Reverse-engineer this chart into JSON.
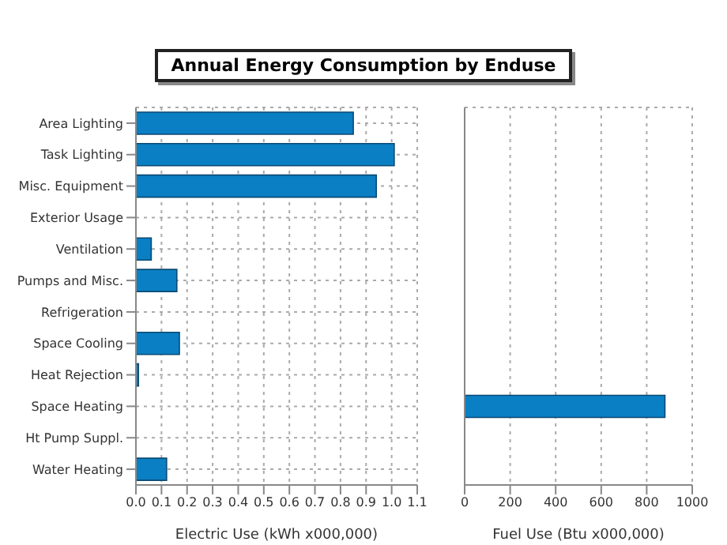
{
  "chart_data": [
    {
      "type": "bar",
      "orientation": "horizontal",
      "title": "Annual Energy Consumption by Enduse",
      "xlabel": "Electric Use (kWh x000,000)",
      "categories": [
        "Area Lighting",
        "Task Lighting",
        "Misc. Equipment",
        "Exterior Usage",
        "Ventilation",
        "Pumps and Misc.",
        "Refrigeration",
        "Space Cooling",
        "Heat Rejection",
        "Space Heating",
        "Ht Pump Suppl.",
        "Water Heating"
      ],
      "values": [
        0.85,
        1.01,
        0.94,
        0,
        0.06,
        0.16,
        0,
        0.17,
        0.01,
        0,
        0,
        0.12
      ],
      "color": "#0a7fc4",
      "xlim": [
        0,
        1.1
      ],
      "xticks": [
        {
          "value": 0,
          "label": "0.0"
        },
        0.1,
        0.2,
        0.3,
        0.4,
        0.5,
        0.6,
        0.7,
        0.8,
        0.9,
        {
          "value": 1,
          "label": "1.0"
        },
        1.1
      ],
      "grid": true
    },
    {
      "type": "bar",
      "orientation": "horizontal",
      "xlabel": "Fuel Use (Btu x000,000)",
      "categories": [
        null,
        null,
        null,
        null,
        null,
        null,
        null,
        null,
        null,
        null,
        null,
        null
      ],
      "values": [
        0,
        0,
        0,
        0,
        0,
        0,
        0,
        0,
        0,
        880,
        0,
        0
      ],
      "color": "#0a7fc4",
      "xlim": [
        0,
        1000
      ],
      "xticks": [
        0,
        200,
        400,
        600,
        800,
        1000
      ],
      "grid": true,
      "tick_labels": "x"
    }
  ]
}
